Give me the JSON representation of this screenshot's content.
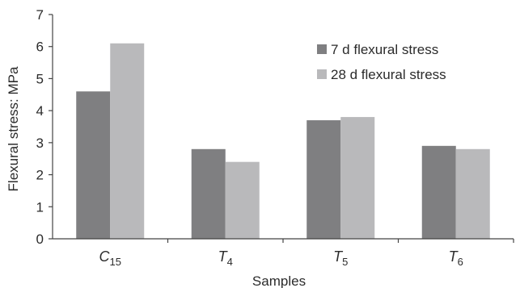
{
  "chart_data": {
    "type": "bar",
    "categories": [
      {
        "base": "C",
        "sub": "15"
      },
      {
        "base": "T",
        "sub": "4"
      },
      {
        "base": "T",
        "sub": "5"
      },
      {
        "base": "T",
        "sub": "6"
      }
    ],
    "series": [
      {
        "name": "7 d flexural stress",
        "color": "#7f7f81",
        "values": [
          4.6,
          2.8,
          3.7,
          2.9
        ]
      },
      {
        "name": "28 d flexural stress",
        "color": "#b9b9bb",
        "values": [
          6.1,
          2.4,
          3.8,
          2.8
        ]
      }
    ],
    "xlabel": "Samples",
    "ylabel": "Flexural stress: MPa",
    "ylim": [
      0,
      7
    ],
    "yticks": [
      "0",
      "1",
      "2",
      "3",
      "4",
      "5",
      "6",
      "7"
    ],
    "grid": false,
    "legend_position": "top-right"
  }
}
